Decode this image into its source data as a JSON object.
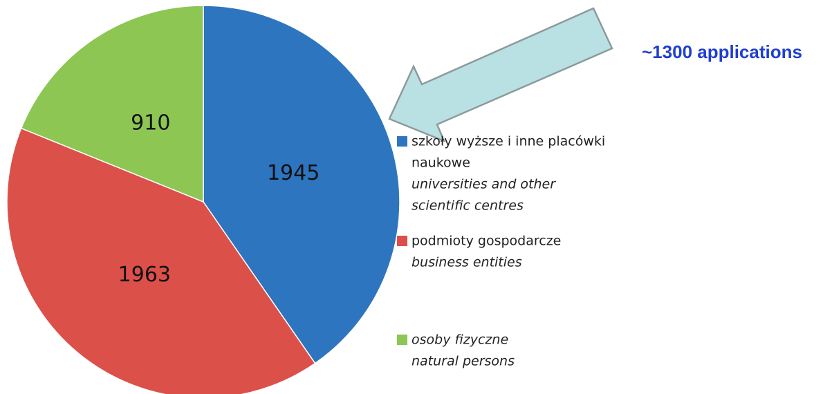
{
  "chart_data": {
    "type": "pie",
    "annotation": "~1300 applications",
    "series": [
      {
        "name": [
          "szkoły wyższe i inne placówki",
          "naukowe"
        ],
        "name_en": [
          "universities and other",
          "scientific centres"
        ],
        "color": "#2e75c0",
        "value": 1945
      },
      {
        "name": [
          "podmioty gospodarcze"
        ],
        "name_en": [
          "business entities"
        ],
        "color": "#dc504a",
        "value": 1963
      },
      {
        "name": [],
        "name_en": [
          "osoby fizyczne",
          "natural persons"
        ],
        "color": "#8dc653",
        "value": 910
      }
    ]
  }
}
